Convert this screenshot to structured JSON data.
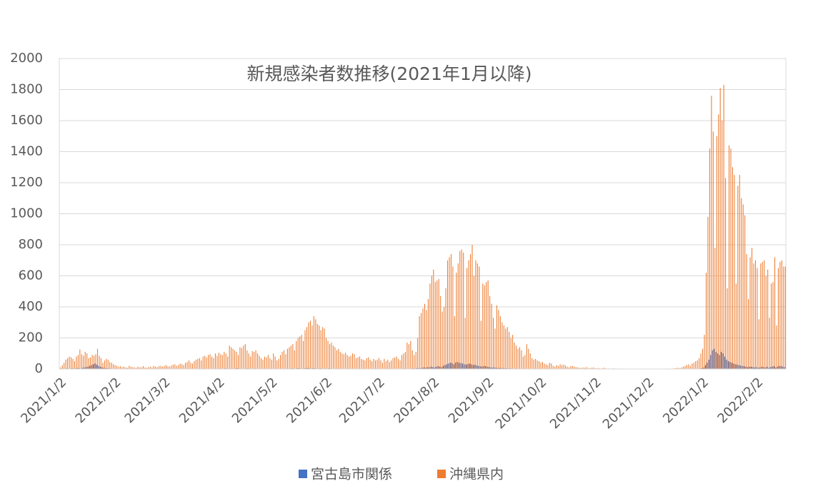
{
  "chart_data": {
    "type": "bar",
    "title": "新規感染者数推移(2021年1月以降)",
    "categories": [
      "2021/1/2",
      null,
      null,
      null,
      null,
      null,
      null,
      null,
      null,
      null,
      null,
      null,
      null,
      null,
      null,
      null,
      null,
      null,
      null,
      null,
      null,
      null,
      null,
      null,
      null,
      null,
      null,
      null,
      null,
      null,
      null,
      "2021/2/2",
      null,
      null,
      null,
      null,
      null,
      null,
      null,
      null,
      null,
      null,
      null,
      null,
      null,
      null,
      null,
      null,
      null,
      null,
      null,
      null,
      null,
      null,
      null,
      null,
      null,
      null,
      null,
      "2021/3/2",
      null,
      null,
      null,
      null,
      null,
      null,
      null,
      null,
      null,
      null,
      null,
      null,
      null,
      null,
      null,
      null,
      null,
      null,
      null,
      null,
      null,
      null,
      null,
      null,
      null,
      null,
      null,
      null,
      null,
      null,
      "2021/4/2",
      null,
      null,
      null,
      null,
      null,
      null,
      null,
      null,
      null,
      null,
      null,
      null,
      null,
      null,
      null,
      null,
      null,
      null,
      null,
      null,
      null,
      null,
      null,
      null,
      null,
      null,
      null,
      null,
      null,
      "2021/5/2",
      null,
      null,
      null,
      null,
      null,
      null,
      null,
      null,
      null,
      null,
      null,
      null,
      null,
      null,
      null,
      null,
      null,
      null,
      null,
      null,
      null,
      null,
      null,
      null,
      null,
      null,
      null,
      null,
      null,
      null,
      "2021/6/2",
      null,
      null,
      null,
      null,
      null,
      null,
      null,
      null,
      null,
      null,
      null,
      null,
      null,
      null,
      null,
      null,
      null,
      null,
      null,
      null,
      null,
      null,
      null,
      null,
      null,
      null,
      null,
      null,
      null,
      "2021/7/2",
      null,
      null,
      null,
      null,
      null,
      null,
      null,
      null,
      null,
      null,
      null,
      null,
      null,
      null,
      null,
      null,
      null,
      null,
      null,
      null,
      null,
      null,
      null,
      null,
      null,
      null,
      null,
      null,
      null,
      null,
      "2021/8/2",
      null,
      null,
      null,
      null,
      null,
      null,
      null,
      null,
      null,
      null,
      null,
      null,
      null,
      null,
      null,
      null,
      null,
      null,
      null,
      null,
      null,
      null,
      null,
      null,
      null,
      null,
      null,
      null,
      null,
      null,
      "2021/9/2",
      null,
      null,
      null,
      null,
      null,
      null,
      null,
      null,
      null,
      null,
      null,
      null,
      null,
      null,
      null,
      null,
      null,
      null,
      null,
      null,
      null,
      null,
      null,
      null,
      null,
      null,
      null,
      null,
      null,
      "2021/10/2",
      null,
      null,
      null,
      null,
      null,
      null,
      null,
      null,
      null,
      null,
      null,
      null,
      null,
      null,
      null,
      null,
      null,
      null,
      null,
      null,
      null,
      null,
      null,
      null,
      null,
      null,
      null,
      null,
      null,
      null,
      "2021/11/2",
      null,
      null,
      null,
      null,
      null,
      null,
      null,
      null,
      null,
      null,
      null,
      null,
      null,
      null,
      null,
      null,
      null,
      null,
      null,
      null,
      null,
      null,
      null,
      null,
      null,
      null,
      null,
      null,
      null,
      "2021/12/2",
      null,
      null,
      null,
      null,
      null,
      null,
      null,
      null,
      null,
      null,
      null,
      null,
      null,
      null,
      null,
      null,
      null,
      null,
      null,
      null,
      null,
      null,
      null,
      null,
      null,
      null,
      null,
      null,
      null,
      null,
      "2022/1/2",
      null,
      null,
      null,
      null,
      null,
      null,
      null,
      null,
      null,
      null,
      null,
      null,
      null,
      null,
      null,
      null,
      null,
      null,
      null,
      null,
      null,
      null,
      null,
      null,
      null,
      null,
      null,
      null,
      null,
      null,
      "2022/2/2",
      null,
      null,
      null,
      null,
      null,
      null,
      null,
      null,
      null,
      null,
      null,
      null,
      null,
      null,
      null,
      null
    ],
    "series": [
      {
        "name": "宮古島市関係",
        "color": "#4472c4",
        "values": [
          1,
          2,
          3,
          2,
          4,
          3,
          2,
          5,
          3,
          4,
          6,
          5,
          3,
          8,
          10,
          12,
          15,
          20,
          25,
          30,
          35,
          28,
          20,
          15,
          10,
          8,
          6,
          5,
          4,
          3,
          2,
          2,
          1,
          1,
          0,
          1,
          2,
          1,
          0,
          1,
          1,
          0,
          1,
          2,
          1,
          0,
          1,
          1,
          0,
          1,
          2,
          1,
          0,
          1,
          1,
          0,
          1,
          2,
          1,
          1,
          0,
          1,
          2,
          1,
          0,
          1,
          1,
          2,
          1,
          0,
          1,
          2,
          1,
          1,
          0,
          1,
          2,
          1,
          1,
          0,
          1,
          2,
          3,
          1,
          2,
          1,
          0,
          1,
          2,
          1,
          2,
          3,
          1,
          2,
          4,
          3,
          2,
          1,
          3,
          2,
          4,
          5,
          3,
          2,
          1,
          2,
          3,
          4,
          2,
          1,
          2,
          3,
          1,
          2,
          1,
          0,
          1,
          2,
          1,
          1,
          1,
          2,
          1,
          0,
          1,
          2,
          3,
          2,
          1,
          2,
          3,
          2,
          4,
          3,
          2,
          5,
          4,
          3,
          2,
          4,
          5,
          6,
          4,
          3,
          5,
          4,
          3,
          2,
          4,
          3,
          2,
          3,
          2,
          4,
          3,
          2,
          1,
          2,
          3,
          2,
          1,
          2,
          1,
          0,
          1,
          2,
          1,
          1,
          0,
          1,
          2,
          1,
          0,
          1,
          1,
          0,
          1,
          2,
          1,
          0,
          1,
          1,
          0,
          1,
          2,
          1,
          0,
          1,
          1,
          2,
          1,
          2,
          1,
          0,
          1,
          2,
          3,
          2,
          1,
          2,
          3,
          4,
          3,
          5,
          6,
          4,
          8,
          10,
          8,
          12,
          10,
          15,
          12,
          10,
          14,
          18,
          15,
          12,
          20,
          25,
          30,
          35,
          40,
          38,
          30,
          42,
          45,
          40,
          38,
          35,
          30,
          28,
          32,
          35,
          30,
          25,
          28,
          22,
          20,
          18,
          15,
          20,
          18,
          15,
          12,
          10,
          8,
          10,
          7,
          6,
          8,
          5,
          6,
          4,
          5,
          3,
          4,
          3,
          2,
          3,
          2,
          1,
          2,
          1,
          2,
          1,
          0,
          1,
          2,
          1,
          0,
          1,
          1,
          0,
          1,
          1,
          0,
          1,
          0,
          0,
          1,
          0,
          1,
          0,
          0,
          1,
          0,
          0,
          1,
          0,
          0,
          0,
          1,
          0,
          0,
          0,
          1,
          0,
          0,
          0,
          0,
          1,
          0,
          0,
          0,
          0,
          0,
          0,
          0,
          0,
          0,
          0,
          0,
          0,
          0,
          0,
          0,
          0,
          0,
          0,
          0,
          0,
          0,
          0,
          0,
          0,
          0,
          0,
          0,
          0,
          0,
          0,
          0,
          0,
          0,
          0,
          0,
          0,
          0,
          0,
          0,
          0,
          0,
          0,
          0,
          0,
          0,
          0,
          0,
          0,
          0,
          0,
          0,
          0,
          0,
          0,
          0,
          0,
          0,
          1,
          0,
          1,
          2,
          1,
          3,
          5,
          10,
          25,
          40,
          60,
          90,
          120,
          130,
          110,
          100,
          90,
          110,
          100,
          80,
          60,
          50,
          45,
          40,
          35,
          30,
          28,
          25,
          22,
          20,
          18,
          15,
          12,
          15,
          14,
          12,
          10,
          12,
          8,
          10,
          15,
          12,
          10,
          14,
          8,
          12,
          15,
          18,
          10,
          15,
          20,
          18,
          15,
          12
        ]
      },
      {
        "name": "沖縄県内",
        "color": "#ed7d31",
        "values": [
          10,
          25,
          40,
          60,
          70,
          80,
          75,
          65,
          50,
          80,
          90,
          125,
          95,
          85,
          110,
          100,
          70,
          75,
          90,
          85,
          95,
          130,
          85,
          70,
          40,
          55,
          65,
          60,
          45,
          40,
          30,
          25,
          20,
          15,
          18,
          12,
          15,
          10,
          8,
          20,
          15,
          12,
          10,
          8,
          15,
          10,
          12,
          18,
          10,
          8,
          12,
          15,
          10,
          20,
          15,
          12,
          18,
          20,
          15,
          20,
          25,
          18,
          15,
          22,
          28,
          30,
          20,
          25,
          35,
          30,
          25,
          40,
          45,
          55,
          40,
          35,
          50,
          60,
          65,
          70,
          55,
          80,
          85,
          75,
          90,
          95,
          80,
          70,
          100,
          85,
          105,
          95,
          90,
          110,
          100,
          80,
          150,
          140,
          130,
          120,
          110,
          90,
          140,
          135,
          150,
          160,
          120,
          100,
          80,
          115,
          110,
          120,
          100,
          85,
          70,
          60,
          80,
          75,
          90,
          70,
          60,
          100,
          80,
          55,
          65,
          90,
          110,
          120,
          95,
          130,
          140,
          150,
          160,
          120,
          180,
          200,
          210,
          220,
          180,
          250,
          270,
          300,
          310,
          280,
          340,
          320,
          290,
          280,
          250,
          270,
          260,
          200,
          180,
          160,
          170,
          150,
          140,
          120,
          130,
          110,
          100,
          95,
          105,
          90,
          80,
          85,
          100,
          95,
          70,
          75,
          80,
          65,
          60,
          55,
          70,
          75,
          60,
          50,
          65,
          55,
          60,
          70,
          55,
          40,
          65,
          50,
          60,
          45,
          55,
          70,
          75,
          80,
          65,
          55,
          90,
          100,
          110,
          170,
          160,
          180,
          120,
          90,
          110,
          200,
          340,
          360,
          390,
          420,
          380,
          450,
          550,
          600,
          640,
          560,
          570,
          580,
          470,
          370,
          400,
          520,
          700,
          720,
          740,
          660,
          340,
          620,
          680,
          760,
          770,
          750,
          330,
          650,
          700,
          740,
          800,
          600,
          700,
          680,
          660,
          310,
          550,
          540,
          560,
          570,
          470,
          420,
          330,
          260,
          410,
          380,
          340,
          300,
          280,
          260,
          270,
          240,
          200,
          220,
          170,
          150,
          130,
          140,
          120,
          80,
          90,
          160,
          130,
          100,
          70,
          60,
          65,
          55,
          50,
          40,
          45,
          35,
          30,
          25,
          40,
          35,
          20,
          15,
          25,
          20,
          30,
          25,
          28,
          22,
          15,
          10,
          18,
          20,
          15,
          12,
          10,
          8,
          6,
          10,
          8,
          12,
          6,
          5,
          8,
          10,
          5,
          4,
          6,
          3,
          5,
          8,
          4,
          2,
          3,
          2,
          4,
          3,
          2,
          1,
          2,
          3,
          1,
          2,
          1,
          1,
          2,
          1,
          0,
          1,
          2,
          1,
          0,
          1,
          2,
          1,
          1,
          2,
          1,
          0,
          1,
          0,
          1,
          2,
          0,
          1,
          2,
          3,
          1,
          2,
          3,
          5,
          6,
          8,
          4,
          10,
          15,
          20,
          25,
          30,
          20,
          35,
          40,
          50,
          55,
          70,
          100,
          130,
          220,
          620,
          980,
          1420,
          1760,
          1530,
          780,
          1500,
          1640,
          1810,
          1600,
          1830,
          1230,
          520,
          1440,
          1420,
          1300,
          1250,
          550,
          1180,
          1250,
          1100,
          1060,
          990,
          740,
          450,
          720,
          780,
          680,
          700,
          650,
          320,
          680,
          690,
          700,
          600,
          640,
          330,
          550,
          560,
          720,
          280,
          650,
          690,
          700,
          660,
          660
        ]
      }
    ],
    "ylim": [
      0,
      2000
    ],
    "yticks": [
      0,
      200,
      400,
      600,
      800,
      1000,
      1200,
      1400,
      1600,
      1800,
      2000
    ],
    "grid": true,
    "legend": "bottom"
  }
}
